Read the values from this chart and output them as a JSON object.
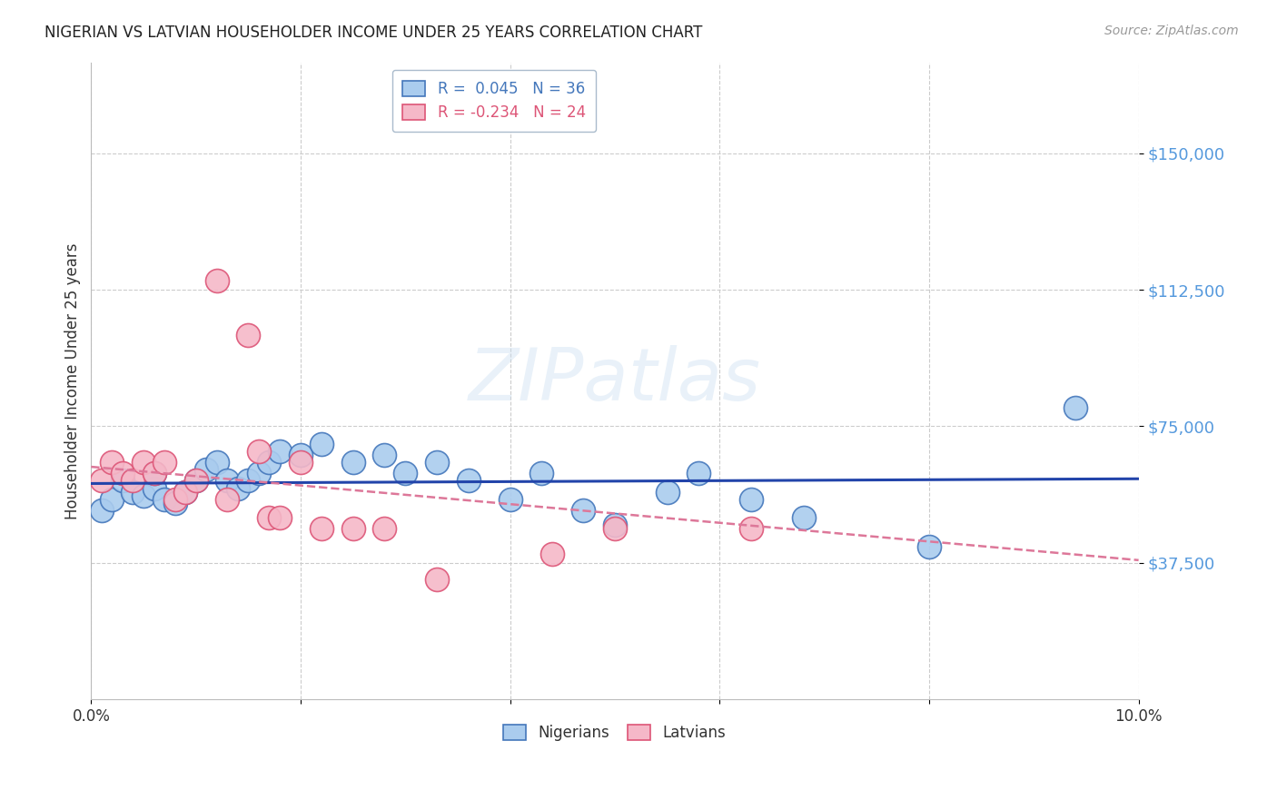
{
  "title": "NIGERIAN VS LATVIAN HOUSEHOLDER INCOME UNDER 25 YEARS CORRELATION CHART",
  "source": "Source: ZipAtlas.com",
  "ylabel": "Householder Income Under 25 years",
  "xlim": [
    0.0,
    0.1
  ],
  "ylim": [
    0,
    175000
  ],
  "yticks": [
    37500,
    75000,
    112500,
    150000
  ],
  "ytick_labels": [
    "$37,500",
    "$75,000",
    "$112,500",
    "$150,000"
  ],
  "xticks": [
    0.0,
    0.02,
    0.04,
    0.06,
    0.08,
    0.1
  ],
  "xtick_labels": [
    "0.0%",
    "",
    "",
    "",
    "",
    "10.0%"
  ],
  "nigerian_color": "#aaccee",
  "latvian_color": "#f5b8c8",
  "nigerian_edge": "#4477bb",
  "latvian_edge": "#dd5577",
  "trend_nigerian_color": "#2244aa",
  "trend_latvian_color": "#dd7799",
  "watermark": "ZIPatlas",
  "legend_text_nigerian": "R =  0.045   N = 36",
  "legend_text_latvian": "R = -0.234   N = 24",
  "nigerian_R": 0.045,
  "latvian_R": -0.234,
  "nigerian_x": [
    0.001,
    0.002,
    0.003,
    0.004,
    0.005,
    0.006,
    0.006,
    0.007,
    0.008,
    0.009,
    0.01,
    0.011,
    0.012,
    0.013,
    0.014,
    0.015,
    0.016,
    0.017,
    0.018,
    0.02,
    0.022,
    0.025,
    0.028,
    0.03,
    0.033,
    0.036,
    0.04,
    0.043,
    0.047,
    0.05,
    0.055,
    0.058,
    0.063,
    0.068,
    0.08,
    0.094
  ],
  "nigerian_y": [
    52000,
    55000,
    60000,
    57000,
    56000,
    58000,
    62000,
    55000,
    54000,
    57000,
    60000,
    63000,
    65000,
    60000,
    58000,
    60000,
    62000,
    65000,
    68000,
    67000,
    70000,
    65000,
    67000,
    62000,
    65000,
    60000,
    55000,
    62000,
    52000,
    48000,
    57000,
    62000,
    55000,
    50000,
    42000,
    80000
  ],
  "latvian_x": [
    0.001,
    0.002,
    0.003,
    0.004,
    0.005,
    0.006,
    0.007,
    0.008,
    0.009,
    0.01,
    0.012,
    0.013,
    0.015,
    0.016,
    0.017,
    0.018,
    0.02,
    0.022,
    0.025,
    0.028,
    0.033,
    0.044,
    0.05,
    0.063
  ],
  "latvian_y": [
    60000,
    65000,
    62000,
    60000,
    65000,
    62000,
    65000,
    55000,
    57000,
    60000,
    115000,
    55000,
    100000,
    68000,
    50000,
    50000,
    65000,
    47000,
    47000,
    47000,
    33000,
    40000,
    47000,
    47000
  ]
}
